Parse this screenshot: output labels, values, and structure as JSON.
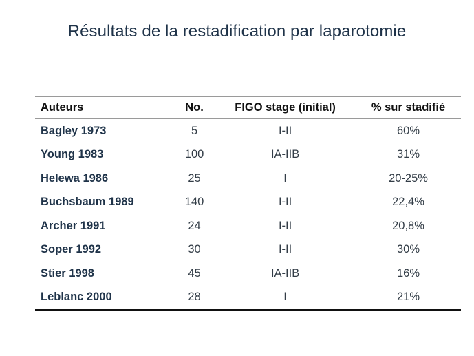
{
  "title": "Résultats de la restadification par laparotomie",
  "table": {
    "headers": {
      "author": "Auteurs",
      "number": "No.",
      "stage": "FIGO stage (initial)",
      "percent": "% sur stadifié"
    },
    "rows": [
      {
        "author": "Bagley 1973",
        "number": "5",
        "stage": "I-II",
        "percent": "60%"
      },
      {
        "author": "Young 1983",
        "number": "100",
        "stage": "IA-IIB",
        "percent": "31%"
      },
      {
        "author": "Helewa 1986",
        "number": "25",
        "stage": "I",
        "percent": "20-25%"
      },
      {
        "author": "Buchsbaum 1989",
        "number": "140",
        "stage": "I-II",
        "percent": "22,4%"
      },
      {
        "author": "Archer 1991",
        "number": "24",
        "stage": "I-II",
        "percent": "20,8%"
      },
      {
        "author": "Soper 1992",
        "number": "30",
        "stage": "I-II",
        "percent": "30%"
      },
      {
        "author": "Stier 1998",
        "number": "45",
        "stage": "IA-IIB",
        "percent": "16%"
      },
      {
        "author": "Leblanc 2000",
        "number": "28",
        "stage": "I",
        "percent": "21%"
      }
    ]
  }
}
